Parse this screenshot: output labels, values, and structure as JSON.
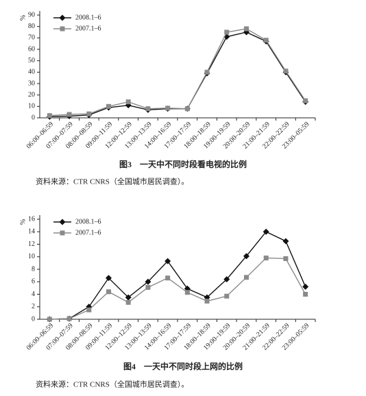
{
  "chart_data": [
    {
      "type": "line",
      "y_label": "%",
      "categories": [
        "06:00–06:59",
        "07:00–07:59",
        "08:00–08:59",
        "09:00–11:59",
        "12:00–12:59",
        "13:00–13:59",
        "14:00–16:59",
        "17:00–17:59",
        "18:00–18:59",
        "19:00–19:59",
        "20:00–20:59",
        "21:00–21:59",
        "22:00–22:59",
        "23:00–05:59"
      ],
      "series": [
        {
          "name": "2008.1–6",
          "color": "#111111",
          "marker": "diamond",
          "values": [
            1,
            1.5,
            2.5,
            9,
            11,
            7,
            8,
            8,
            39,
            71,
            75,
            67,
            40,
            14
          ]
        },
        {
          "name": "2007.1–6",
          "color": "#8a8a8a",
          "marker": "square",
          "values": [
            2,
            3,
            3.5,
            10,
            14,
            8,
            8.5,
            8,
            40,
            75,
            78,
            68,
            41,
            15
          ]
        }
      ],
      "ylim": [
        0,
        90
      ],
      "yticks": [
        0,
        10,
        20,
        30,
        40,
        50,
        60,
        70,
        80,
        90
      ],
      "caption": "图3　一天中不同时段看电视的比例",
      "source": "资料来源：CTR CNRS（全国城市居民调查）。"
    },
    {
      "type": "line",
      "y_label": "%",
      "categories": [
        "06:00–06:59",
        "07:00–07:59",
        "08:00–08:59",
        "09:00–11:59",
        "12:00–12:59",
        "13:00–13:59",
        "14:00–16:59",
        "17:00–17:59",
        "18:00–18:59",
        "19:00–19:59",
        "20:00–20:59",
        "21:00–21:59",
        "22:00–22:59",
        "23:00–05:59"
      ],
      "series": [
        {
          "name": "2008.1–6",
          "color": "#111111",
          "marker": "diamond",
          "values": [
            0,
            0.1,
            2,
            6.6,
            3.5,
            6,
            9.3,
            4.9,
            3.5,
            6.4,
            10.1,
            14,
            12.5,
            5.2
          ]
        },
        {
          "name": "2007.1–6",
          "color": "#8a8a8a",
          "marker": "square",
          "values": [
            0,
            0.1,
            1.5,
            4.4,
            2.7,
            5.1,
            6.6,
            4.3,
            2.9,
            3.7,
            6.7,
            9.8,
            9.7,
            4
          ]
        }
      ],
      "ylim": [
        0,
        16
      ],
      "yticks": [
        0,
        2,
        4,
        6,
        8,
        10,
        12,
        14,
        16
      ],
      "caption": "图4　一天中不同时段上网的比例",
      "source": "资料来源：CTR CNRS（全国城市居民调查）。"
    }
  ]
}
